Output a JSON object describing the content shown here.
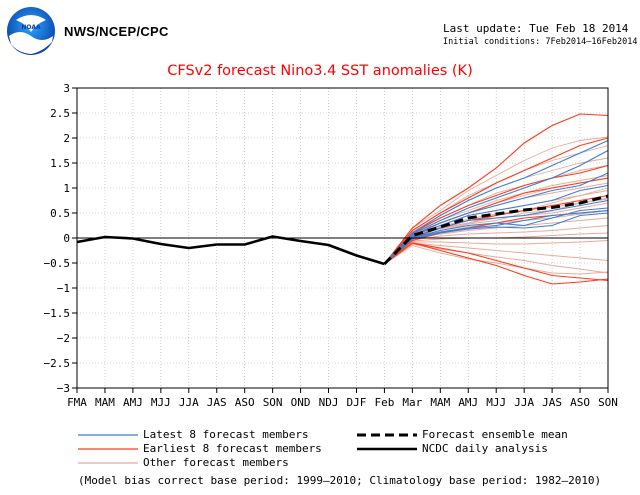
{
  "header": {
    "agency": "NWS/NCEP/CPC",
    "logo_text": "NOAA",
    "last_update": "Last update: Tue Feb 18 2014",
    "initial_conditions": "Initial conditions: 7Feb2014–16Feb2014",
    "footnote": "(Model bias correct base period: 1999–2010; Climatology base period: 1982–2010)"
  },
  "chart_data": {
    "type": "line",
    "title": "CFSv2 forecast Nino3.4 SST anomalies (K)",
    "xlabel": "",
    "ylabel": "",
    "categories": [
      "FMA",
      "MAM",
      "AMJ",
      "MJJ",
      "JJA",
      "JAS",
      "ASO",
      "SON",
      "OND",
      "NDJ",
      "DJF",
      "Feb",
      "Mar",
      "MAM",
      "AMJ",
      "MJJ",
      "JJA",
      "JAS",
      "ASO",
      "SON"
    ],
    "ylim": [
      -3,
      3
    ],
    "yticks": [
      -3,
      -2.5,
      -2,
      -1.5,
      -1,
      -0.5,
      0,
      0.5,
      1,
      1.5,
      2,
      2.5,
      3
    ],
    "ytick_labels": [
      "−3",
      "−2.5",
      "−2",
      "−1.5",
      "−1",
      "−0.5",
      "0",
      "0.5",
      "1",
      "1.5",
      "2",
      "2.5",
      "3"
    ],
    "grid": true,
    "legend_position": "bottom",
    "colors": {
      "latest": "#3a7fd5",
      "earliest": "#ff3a1a",
      "other": "#e9a99a",
      "mean": "#000000",
      "analysis": "#000000",
      "zero": "#000000"
    },
    "observed": {
      "name": "NCDC daily analysis",
      "x_index": [
        0,
        1,
        2,
        3,
        4,
        5,
        6,
        7,
        8,
        9,
        10,
        11
      ],
      "values": [
        -0.08,
        0.02,
        -0.01,
        -0.12,
        -0.2,
        -0.13,
        -0.13,
        0.03,
        -0.06,
        -0.14,
        -0.35,
        -0.52
      ]
    },
    "ensemble_mean": {
      "name": "Forecast ensemble mean",
      "x_index": [
        11,
        12,
        13,
        14,
        15,
        16,
        17,
        18,
        19
      ],
      "values": [
        -0.52,
        0.05,
        0.22,
        0.4,
        0.48,
        0.56,
        0.61,
        0.7,
        0.84
      ]
    },
    "member_groups": [
      {
        "name": "Latest 8 forecast members",
        "key": "latest",
        "x_index": [
          11,
          12,
          13,
          14,
          15,
          16,
          17,
          18,
          19
        ],
        "members": [
          [
            -0.52,
            0.1,
            0.45,
            0.75,
            1.0,
            1.2,
            1.45,
            1.7,
            1.95
          ],
          [
            -0.52,
            0.08,
            0.35,
            0.6,
            0.8,
            1.0,
            1.2,
            1.45,
            1.75
          ],
          [
            -0.52,
            0.05,
            0.3,
            0.5,
            0.65,
            0.8,
            0.95,
            1.05,
            1.3
          ],
          [
            -0.52,
            0.05,
            0.25,
            0.45,
            0.55,
            0.65,
            0.75,
            0.95,
            1.05
          ],
          [
            -0.52,
            0.02,
            0.2,
            0.35,
            0.4,
            0.45,
            0.55,
            0.65,
            0.75
          ],
          [
            -0.52,
            0.0,
            0.15,
            0.25,
            0.3,
            0.25,
            0.4,
            0.55,
            0.6
          ],
          [
            -0.52,
            -0.02,
            0.1,
            0.18,
            0.22,
            0.2,
            0.25,
            0.45,
            0.5
          ],
          [
            -0.52,
            0.0,
            0.12,
            0.2,
            0.25,
            0.35,
            0.45,
            0.5,
            0.55
          ]
        ]
      },
      {
        "name": "Earliest 8 forecast members",
        "key": "earliest",
        "x_index": [
          11,
          12,
          13,
          14,
          15,
          16,
          17,
          18,
          19
        ],
        "members": [
          [
            -0.52,
            0.2,
            0.65,
            1.0,
            1.4,
            1.9,
            2.25,
            2.48,
            2.45
          ],
          [
            -0.52,
            0.15,
            0.5,
            0.8,
            1.1,
            1.35,
            1.6,
            1.85,
            2.0
          ],
          [
            -0.52,
            0.1,
            0.4,
            0.65,
            0.85,
            1.05,
            1.2,
            1.3,
            1.45
          ],
          [
            -0.52,
            0.05,
            0.3,
            0.5,
            0.7,
            0.9,
            1.0,
            1.1,
            1.2
          ],
          [
            -0.52,
            0.0,
            0.2,
            0.35,
            0.45,
            0.55,
            0.65,
            0.75,
            0.85
          ],
          [
            -0.52,
            -0.05,
            0.1,
            0.2,
            0.3,
            0.4,
            0.45,
            0.5,
            0.55
          ],
          [
            -0.52,
            -0.1,
            -0.25,
            -0.4,
            -0.55,
            -0.75,
            -0.92,
            -0.88,
            -0.82
          ],
          [
            -0.52,
            -0.1,
            -0.2,
            -0.3,
            -0.45,
            -0.6,
            -0.75,
            -0.8,
            -0.85
          ]
        ]
      },
      {
        "name": "Other forecast members",
        "key": "other",
        "x_index": [
          11,
          12,
          13,
          14,
          15,
          16,
          17,
          18,
          19
        ],
        "members": [
          [
            -0.52,
            0.2,
            0.55,
            0.95,
            1.25,
            1.55,
            1.8,
            1.95,
            2.02
          ],
          [
            -0.52,
            0.15,
            0.5,
            0.85,
            1.1,
            1.35,
            1.55,
            1.7,
            1.85
          ],
          [
            -0.52,
            0.12,
            0.45,
            0.75,
            1.0,
            1.2,
            1.35,
            1.5,
            1.6
          ],
          [
            -0.52,
            0.1,
            0.4,
            0.65,
            0.9,
            1.05,
            1.2,
            1.35,
            1.45
          ],
          [
            -0.52,
            0.08,
            0.35,
            0.55,
            0.75,
            0.9,
            1.05,
            1.15,
            1.25
          ],
          [
            -0.52,
            0.06,
            0.3,
            0.5,
            0.65,
            0.8,
            0.9,
            1.0,
            1.1
          ],
          [
            -0.52,
            0.05,
            0.25,
            0.45,
            0.55,
            0.65,
            0.75,
            0.85,
            0.95
          ],
          [
            -0.52,
            0.04,
            0.22,
            0.38,
            0.48,
            0.55,
            0.62,
            0.7,
            0.8
          ],
          [
            -0.52,
            0.02,
            0.18,
            0.3,
            0.4,
            0.45,
            0.5,
            0.6,
            0.7
          ],
          [
            -0.52,
            0.0,
            0.12,
            0.22,
            0.3,
            0.35,
            0.4,
            0.48,
            0.55
          ],
          [
            -0.52,
            -0.02,
            0.08,
            0.15,
            0.2,
            0.25,
            0.3,
            0.35,
            0.4
          ],
          [
            -0.52,
            -0.04,
            0.04,
            0.08,
            0.1,
            0.12,
            0.15,
            0.2,
            0.25
          ],
          [
            -0.52,
            -0.06,
            -0.02,
            0.0,
            0.0,
            0.02,
            0.05,
            0.08,
            0.1
          ],
          [
            -0.52,
            -0.08,
            -0.08,
            -0.1,
            -0.12,
            -0.12,
            -0.1,
            -0.08,
            -0.05
          ],
          [
            -0.52,
            -0.1,
            -0.15,
            -0.2,
            -0.25,
            -0.3,
            -0.35,
            -0.4,
            -0.45
          ],
          [
            -0.52,
            -0.12,
            -0.22,
            -0.3,
            -0.38,
            -0.45,
            -0.55,
            -0.62,
            -0.7
          ],
          [
            -0.52,
            -0.15,
            -0.3,
            -0.42,
            -0.5,
            -0.6,
            -0.7,
            -0.72,
            -0.68
          ],
          [
            -0.52,
            0.1,
            0.3,
            0.5,
            0.7,
            0.85,
            1.0,
            1.1,
            1.2
          ],
          [
            -0.52,
            0.05,
            0.2,
            0.3,
            0.45,
            0.55,
            0.7,
            0.85,
            1.0
          ],
          [
            -0.52,
            0.0,
            0.15,
            0.28,
            0.35,
            0.5,
            0.55,
            0.7,
            0.78
          ]
        ]
      }
    ]
  }
}
